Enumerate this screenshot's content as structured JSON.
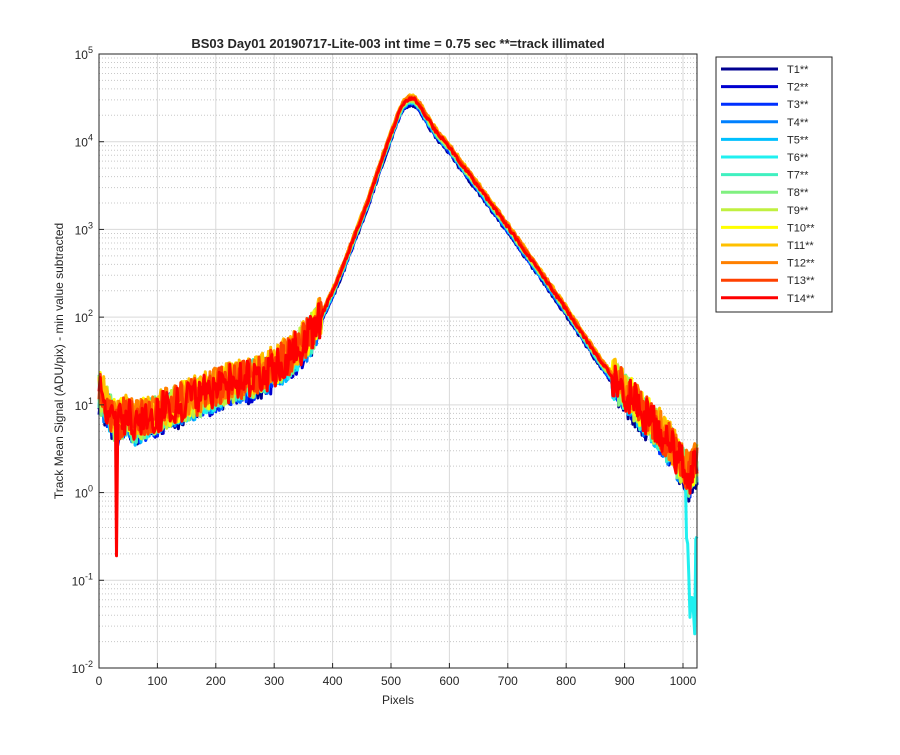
{
  "chart_data": {
    "type": "line",
    "title": "BS03 Day01 20190717-Lite-003 int time = 0.75 sec   **=track illimated",
    "xlabel": "Pixels",
    "ylabel": "Track Mean Signal (ADU/pix) - min value subtracted",
    "xlim": [
      0,
      1024
    ],
    "ylim": [
      0.01,
      100000
    ],
    "yscale": "log",
    "xticks": [
      0,
      100,
      200,
      300,
      400,
      500,
      600,
      700,
      800,
      900,
      1000
    ],
    "yticks": [
      {
        "base": "10",
        "exp": "-2",
        "value": 0.01
      },
      {
        "base": "10",
        "exp": "-1",
        "value": 0.1
      },
      {
        "base": "10",
        "exp": "0",
        "value": 1
      },
      {
        "base": "10",
        "exp": "1",
        "value": 10
      },
      {
        "base": "10",
        "exp": "2",
        "value": 100
      },
      {
        "base": "10",
        "exp": "3",
        "value": 1000
      },
      {
        "base": "10",
        "exp": "4",
        "value": 10000
      },
      {
        "base": "10",
        "exp": "5",
        "value": 100000
      }
    ],
    "grid": true,
    "minor_grid": true,
    "legend_position": "outside-right-top",
    "x": [
      0,
      10,
      20,
      30,
      40,
      50,
      60,
      80,
      100,
      120,
      150,
      180,
      200,
      220,
      250,
      280,
      300,
      320,
      340,
      360,
      380,
      400,
      420,
      440,
      460,
      480,
      500,
      510,
      520,
      530,
      540,
      550,
      560,
      570,
      580,
      600,
      620,
      650,
      680,
      700,
      730,
      760,
      800,
      830,
      860,
      880,
      900,
      920,
      940,
      960,
      970,
      980,
      990,
      1000,
      1005,
      1010,
      1015,
      1020,
      1024
    ],
    "profile": [
      14,
      11,
      8,
      6,
      7,
      8,
      6,
      7,
      8,
      9,
      11,
      13,
      15,
      17,
      19,
      22,
      26,
      32,
      42,
      60,
      100,
      190,
      400,
      900,
      2000,
      5000,
      12000,
      18000,
      26000,
      30000,
      29500,
      25000,
      19000,
      15000,
      12000,
      8500,
      5500,
      3000,
      1600,
      1050,
      550,
      290,
      120,
      60,
      30,
      20,
      14,
      10,
      7,
      5,
      4,
      3.5,
      2.5,
      2,
      1.8,
      1.5,
      1.7,
      2,
      2.2
    ],
    "series": [
      {
        "name": "T1**",
        "color": "#000090",
        "scale": 0.88
      },
      {
        "name": "T2**",
        "color": "#0000d0",
        "scale": 0.9
      },
      {
        "name": "T3**",
        "color": "#0030ff",
        "scale": 0.92
      },
      {
        "name": "T4**",
        "color": "#0080ff",
        "scale": 0.93
      },
      {
        "name": "T5**",
        "color": "#00c0ff",
        "scale": 0.95
      },
      {
        "name": "T6**",
        "color": "#20f0f0",
        "scale": 0.96
      },
      {
        "name": "T7**",
        "color": "#40f0c0",
        "scale": 0.97
      },
      {
        "name": "T8**",
        "color": "#80f080",
        "scale": 0.98
      },
      {
        "name": "T9**",
        "color": "#c0f040",
        "scale": 1.0
      },
      {
        "name": "T10**",
        "color": "#ffff00",
        "scale": 1.05
      },
      {
        "name": "T11**",
        "color": "#ffc000",
        "scale": 1.1
      },
      {
        "name": "T12**",
        "color": "#ff8000",
        "scale": 1.08
      },
      {
        "name": "T13**",
        "color": "#ff4000",
        "scale": 1.04
      },
      {
        "name": "T14**",
        "color": "#ff0000",
        "scale": 1.02
      }
    ]
  }
}
